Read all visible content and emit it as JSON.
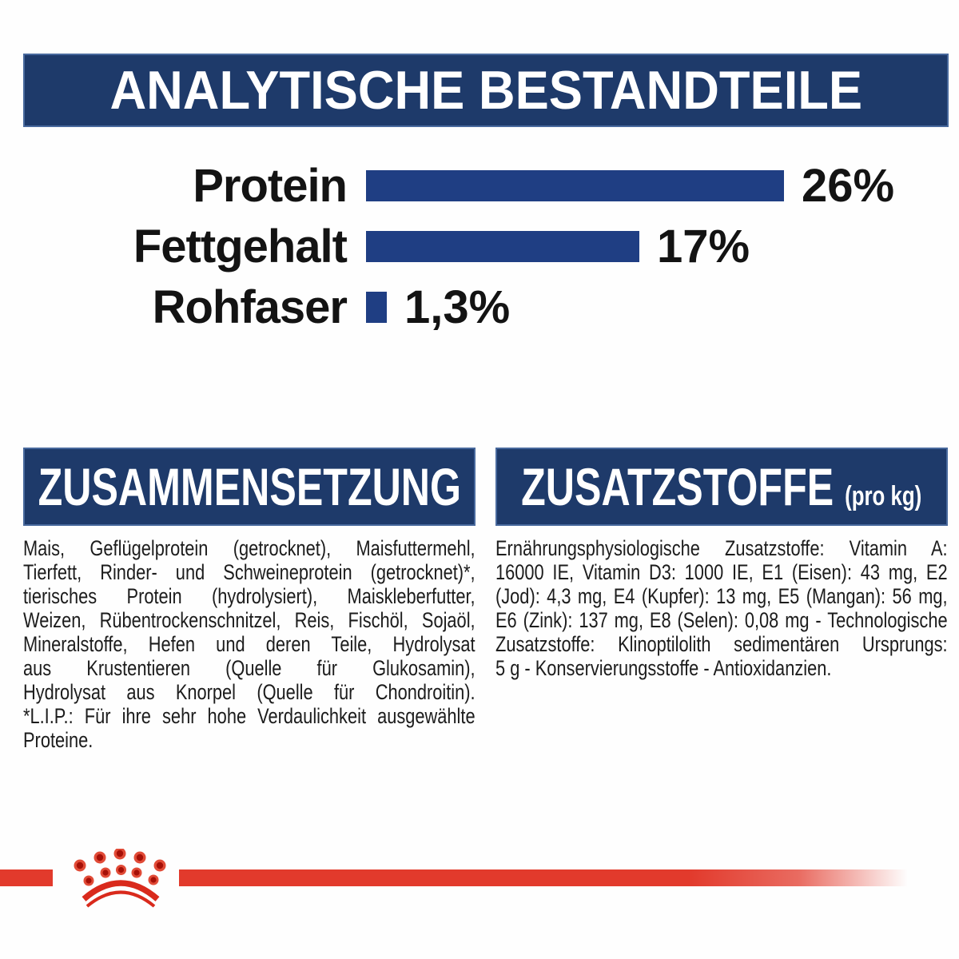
{
  "header": {
    "title": "ANALYTISCHE BESTANDTEILE"
  },
  "chart_data": {
    "type": "bar",
    "orientation": "horizontal",
    "title": "ANALYTISCHE BESTANDTEILE",
    "categories": [
      "Protein",
      "Fettgehalt",
      "Rohfaser"
    ],
    "values": [
      26,
      17,
      1.3
    ],
    "value_labels": [
      "26%",
      "17%",
      "1,3%"
    ],
    "unit": "%",
    "xlim": [
      0,
      26
    ],
    "grid": false,
    "legend": false,
    "bar_color": "#1f3e83"
  },
  "sections": {
    "composition": {
      "title": "ZUSAMMENSETZUNG",
      "lines": [
        "Mais, Geflügelprotein (getrocknet), Maisfuttermehl,",
        "Tierfett, Rinder- und Schweineprotein (getrocknet)*,",
        "tierisches Protein (hydrolysiert), Maiskleberfutter,",
        "Weizen, Rübentrockenschnitzel, Reis, Fischöl, Sojaöl,",
        "Mineralstoffe, Hefen und deren Teile, Hydrolysat",
        "aus Krustentieren (Quelle für Glukosamin),",
        "Hydrolysat aus Knorpel (Quelle für Chondroitin).",
        "*L.I.P.: Für ihre sehr hohe Verdaulichkeit ausgewählte",
        "Proteine."
      ]
    },
    "additives": {
      "title": "ZUSATZSTOFFE",
      "title_suffix": "(pro kg)",
      "lines": [
        "Ernährungsphysiologische Zusatzstoffe: Vitamin A:",
        "16000 IE, Vitamin D3: 1000 IE, E1 (Eisen): 43 mg, E2",
        "(Jod): 4,3 mg, E4 (Kupfer): 13 mg, E5 (Mangan): 56 mg,",
        "E6 (Zink): 137 mg, E8 (Selen): 0,08 mg - Technologische",
        "Zusatzstoffe: Klinoptilolith sedimentären Ursprungs:",
        "5 g - Konservierungsstoffe - Antioxidanzien."
      ]
    }
  },
  "footer": {
    "logo": "royal-canin-crown"
  },
  "colors": {
    "navy": "#1e3a6a",
    "bar_blue": "#1f3e83",
    "red": "#e23a2c",
    "text_black": "#131313",
    "white": "#ffffff"
  }
}
